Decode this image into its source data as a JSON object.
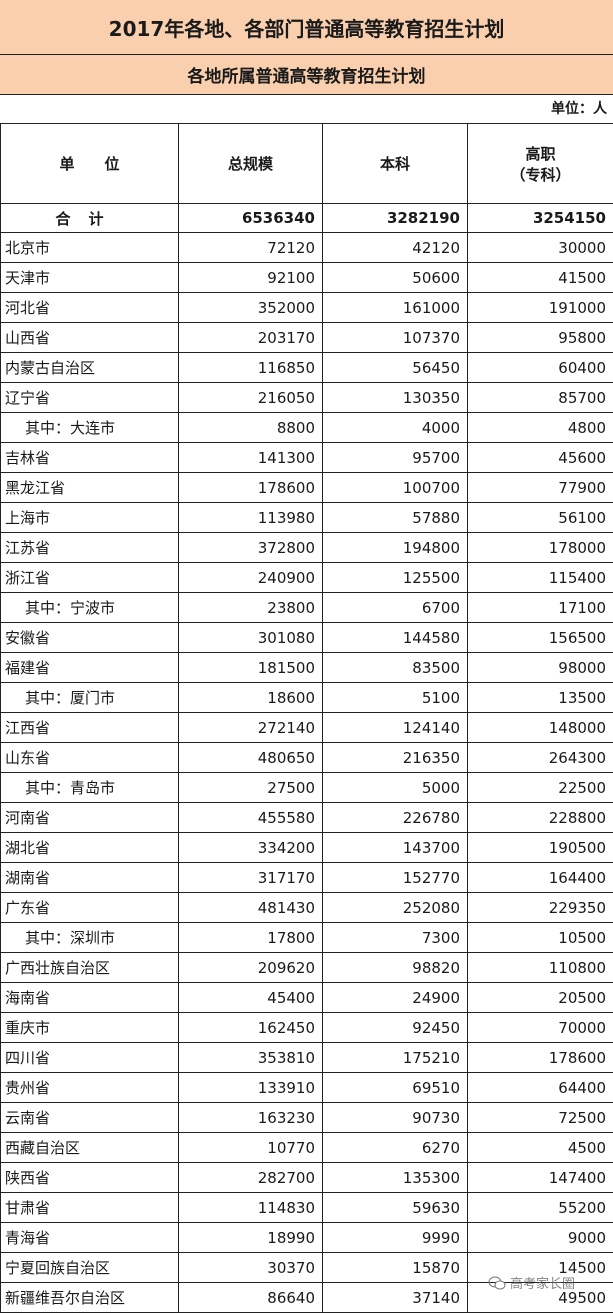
{
  "title": "2017年各地、各部门普通高等教育招生计划",
  "subtitle": "各地所属普通高等教育招生计划",
  "unit": "单位：人",
  "headers": [
    "单　　位",
    "总规模",
    "本科",
    "高职\n（专科）"
  ],
  "total": {
    "name": "合计",
    "total": "6536340",
    "undergrad": "3282190",
    "vocational": "3254150"
  },
  "rows": [
    {
      "name": "北京市",
      "total": "72120",
      "undergrad": "42120",
      "vocational": "30000"
    },
    {
      "name": "天津市",
      "total": "92100",
      "undergrad": "50600",
      "vocational": "41500"
    },
    {
      "name": "河北省",
      "total": "352000",
      "undergrad": "161000",
      "vocational": "191000"
    },
    {
      "name": "山西省",
      "total": "203170",
      "undergrad": "107370",
      "vocational": "95800"
    },
    {
      "name": "内蒙古自治区",
      "total": "116850",
      "undergrad": "56450",
      "vocational": "60400"
    },
    {
      "name": "辽宁省",
      "total": "216050",
      "undergrad": "130350",
      "vocational": "85700"
    },
    {
      "name": "其中：大连市",
      "sub": true,
      "total": "8800",
      "undergrad": "4000",
      "vocational": "4800"
    },
    {
      "name": "吉林省",
      "total": "141300",
      "undergrad": "95700",
      "vocational": "45600"
    },
    {
      "name": "黑龙江省",
      "total": "178600",
      "undergrad": "100700",
      "vocational": "77900"
    },
    {
      "name": "上海市",
      "total": "113980",
      "undergrad": "57880",
      "vocational": "56100"
    },
    {
      "name": "江苏省",
      "total": "372800",
      "undergrad": "194800",
      "vocational": "178000"
    },
    {
      "name": "浙江省",
      "total": "240900",
      "undergrad": "125500",
      "vocational": "115400"
    },
    {
      "name": "其中：宁波市",
      "sub": true,
      "total": "23800",
      "undergrad": "6700",
      "vocational": "17100"
    },
    {
      "name": "安徽省",
      "total": "301080",
      "undergrad": "144580",
      "vocational": "156500"
    },
    {
      "name": "福建省",
      "total": "181500",
      "undergrad": "83500",
      "vocational": "98000"
    },
    {
      "name": "其中：厦门市",
      "sub": true,
      "total": "18600",
      "undergrad": "5100",
      "vocational": "13500"
    },
    {
      "name": "江西省",
      "total": "272140",
      "undergrad": "124140",
      "vocational": "148000"
    },
    {
      "name": "山东省",
      "total": "480650",
      "undergrad": "216350",
      "vocational": "264300"
    },
    {
      "name": "其中：青岛市",
      "sub": true,
      "total": "27500",
      "undergrad": "5000",
      "vocational": "22500"
    },
    {
      "name": "河南省",
      "total": "455580",
      "undergrad": "226780",
      "vocational": "228800"
    },
    {
      "name": "湖北省",
      "total": "334200",
      "undergrad": "143700",
      "vocational": "190500"
    },
    {
      "name": "湖南省",
      "total": "317170",
      "undergrad": "152770",
      "vocational": "164400"
    },
    {
      "name": "广东省",
      "total": "481430",
      "undergrad": "252080",
      "vocational": "229350"
    },
    {
      "name": "其中：深圳市",
      "sub": true,
      "total": "17800",
      "undergrad": "7300",
      "vocational": "10500"
    },
    {
      "name": "广西壮族自治区",
      "total": "209620",
      "undergrad": "98820",
      "vocational": "110800"
    },
    {
      "name": "海南省",
      "total": "45400",
      "undergrad": "24900",
      "vocational": "20500"
    },
    {
      "name": "重庆市",
      "total": "162450",
      "undergrad": "92450",
      "vocational": "70000"
    },
    {
      "name": "四川省",
      "total": "353810",
      "undergrad": "175210",
      "vocational": "178600"
    },
    {
      "name": "贵州省",
      "total": "133910",
      "undergrad": "69510",
      "vocational": "64400"
    },
    {
      "name": "云南省",
      "total": "163230",
      "undergrad": "90730",
      "vocational": "72500"
    },
    {
      "name": "西藏自治区",
      "total": "10770",
      "undergrad": "6270",
      "vocational": "4500"
    },
    {
      "name": "陕西省",
      "total": "282700",
      "undergrad": "135300",
      "vocational": "147400"
    },
    {
      "name": "甘肃省",
      "total": "114830",
      "undergrad": "59630",
      "vocational": "55200"
    },
    {
      "name": "青海省",
      "total": "18990",
      "undergrad": "9990",
      "vocational": "9000"
    },
    {
      "name": "宁夏回族自治区",
      "total": "30370",
      "undergrad": "15870",
      "vocational": "14500"
    },
    {
      "name": "新疆维吾尔自治区",
      "total": "86640",
      "undergrad": "37140",
      "vocational": "49500"
    }
  ],
  "watermark": {
    "text": "高考家长圈",
    "icon": "wechat-icon"
  },
  "colors": {
    "header_band": "#f9cfae",
    "border": "#222222"
  }
}
